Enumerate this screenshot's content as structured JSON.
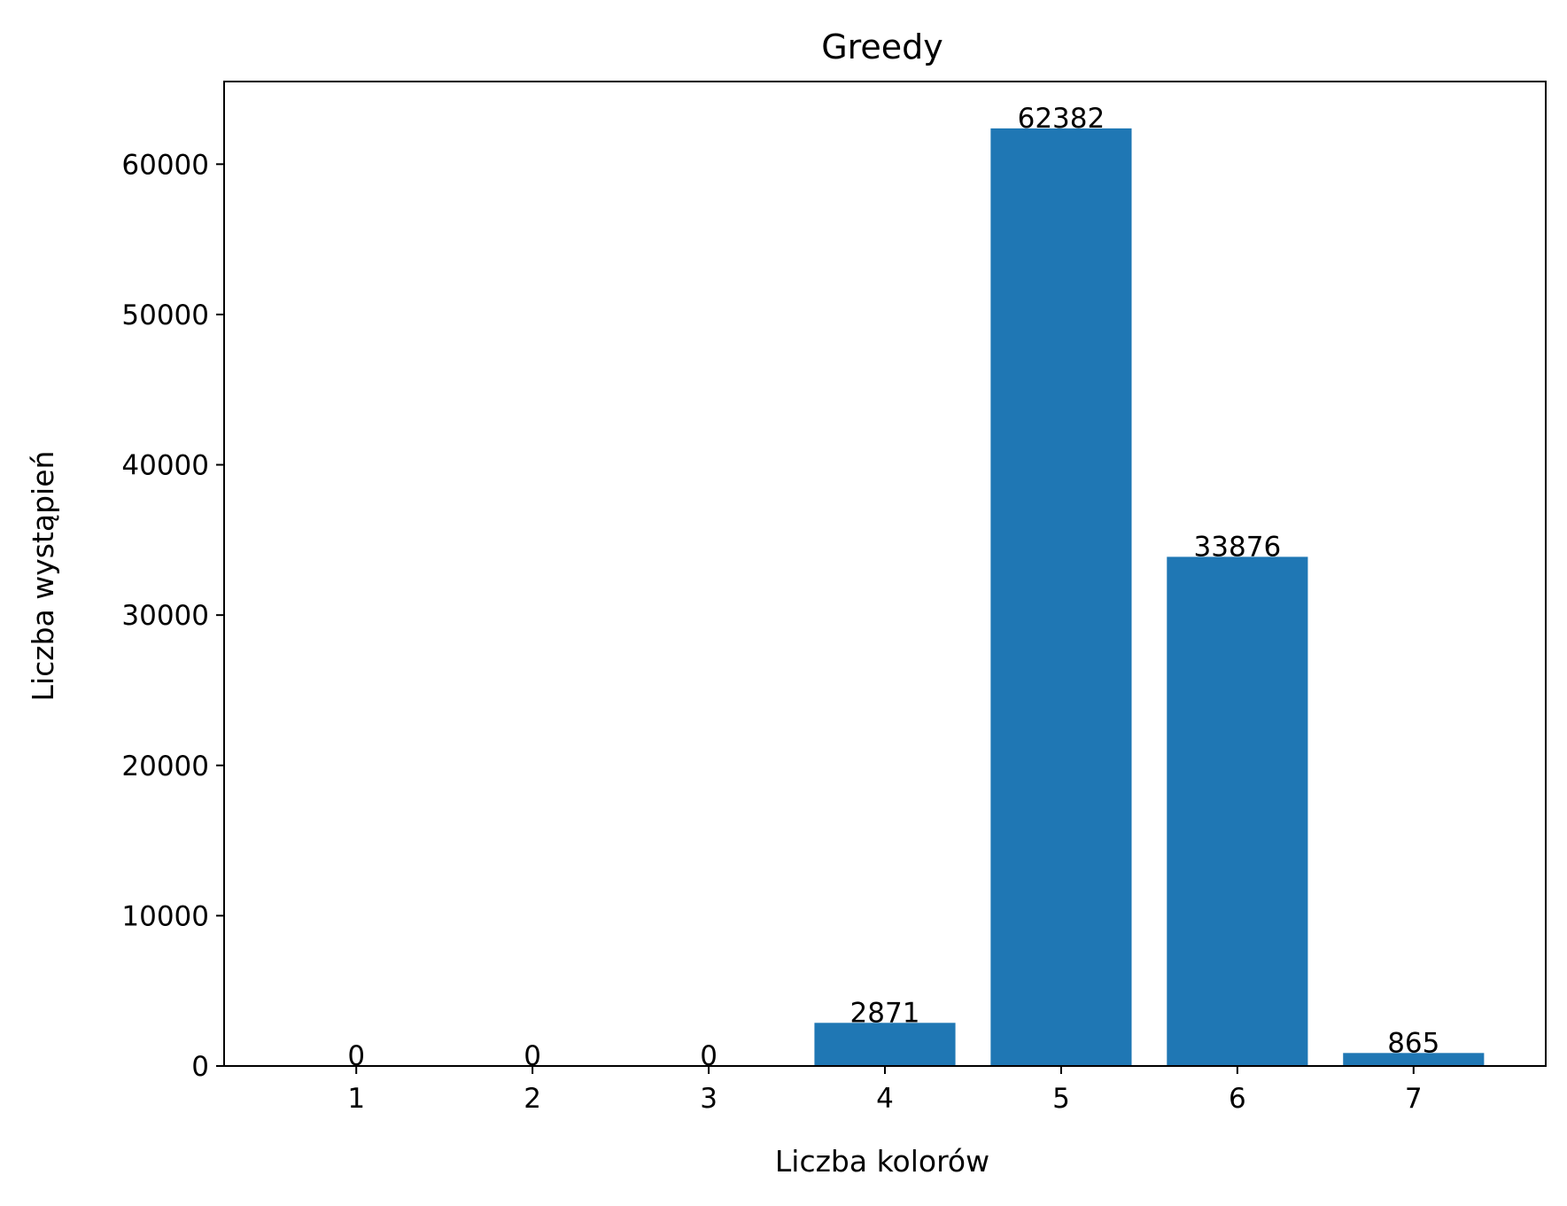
{
  "chart_data": {
    "type": "bar",
    "title": "Greedy",
    "xlabel": "Liczba kolorów",
    "ylabel": "Liczba wystąpień",
    "categories": [
      "1",
      "2",
      "3",
      "4",
      "5",
      "6",
      "7"
    ],
    "values": [
      0,
      0,
      0,
      2871,
      62382,
      33876,
      865
    ],
    "data_labels": [
      "0",
      "0",
      "0",
      "2871",
      "62382",
      "33876",
      "865"
    ],
    "yticks": [
      0,
      10000,
      20000,
      30000,
      40000,
      50000,
      60000
    ],
    "ytick_labels": [
      "0",
      "10000",
      "20000",
      "30000",
      "40000",
      "50000",
      "60000"
    ],
    "ylim": [
      0,
      65500
    ],
    "xlim": [
      0.25,
      7.75
    ],
    "bar_color": "#1f77b4",
    "grid": false,
    "legend": "none"
  }
}
